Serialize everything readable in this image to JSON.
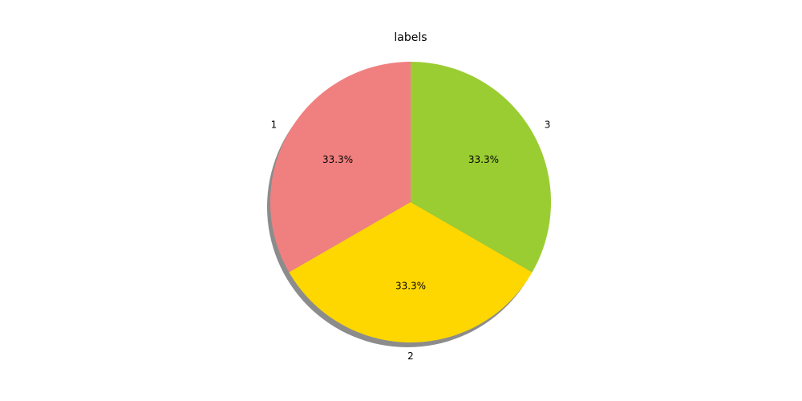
{
  "chart_data": {
    "type": "pie",
    "title": "labels",
    "categories": [
      "1",
      "2",
      "3"
    ],
    "values": [
      33.3,
      33.3,
      33.3
    ],
    "value_labels": [
      "33.3%",
      "33.3%",
      "33.3%"
    ],
    "colors": [
      "#F08080",
      "#FFD700",
      "#9ACD32"
    ],
    "start_angle_deg": 90,
    "direction": "counterclockwise",
    "shadow": true,
    "shadow_color": "#8c8c8c"
  }
}
